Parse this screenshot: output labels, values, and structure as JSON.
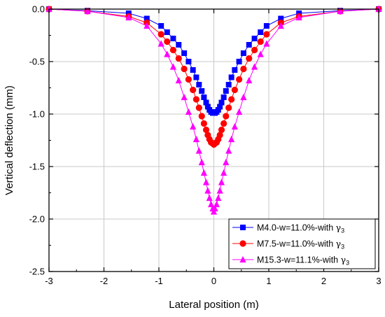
{
  "chart_data": {
    "type": "line",
    "xlabel": "Lateral position (m)",
    "ylabel": "Vertical deflection (mm)",
    "xlim": [
      -3,
      3
    ],
    "ylim": [
      -2.5,
      0.0
    ],
    "xticks": [
      -3,
      -2,
      -1,
      0,
      1,
      2,
      3
    ],
    "yticks": [
      0.0,
      -0.5,
      -1.0,
      -1.5,
      -2.0,
      -2.5
    ],
    "xtick_labels": [
      "-3",
      "-2",
      "-1",
      "0",
      "1",
      "2",
      "3"
    ],
    "ytick_labels": [
      "0.0",
      "-0.5",
      "-1.0",
      "-1.5",
      "-2.0",
      "-2.5"
    ],
    "grid": true,
    "legend_position": "bottom-right",
    "gamma_symbol": "γ",
    "gamma_subscript": "3",
    "series": [
      {
        "name": "M4.0-w=11.0%-with γ3",
        "legend_main": "M4.0-w=11.0%-with ",
        "color": "#0000ff",
        "marker": "square",
        "x": [
          -3.0,
          -2.3,
          -1.55,
          -1.22,
          -0.96,
          -0.85,
          -0.74,
          -0.64,
          -0.54,
          -0.46,
          -0.38,
          -0.32,
          -0.27,
          -0.22,
          -0.18,
          -0.14,
          -0.11,
          -0.08,
          -0.05,
          -0.02,
          0.0,
          0.02,
          0.05,
          0.08,
          0.11,
          0.14,
          0.18,
          0.22,
          0.27,
          0.32,
          0.38,
          0.46,
          0.54,
          0.64,
          0.74,
          0.85,
          0.96,
          1.22,
          1.55,
          2.3,
          3.0
        ],
        "y": [
          0.0,
          -0.015,
          -0.04,
          -0.09,
          -0.16,
          -0.22,
          -0.28,
          -0.34,
          -0.42,
          -0.5,
          -0.58,
          -0.65,
          -0.72,
          -0.78,
          -0.84,
          -0.89,
          -0.93,
          -0.96,
          -0.98,
          -0.99,
          -0.99,
          -0.99,
          -0.98,
          -0.96,
          -0.93,
          -0.89,
          -0.84,
          -0.78,
          -0.72,
          -0.65,
          -0.58,
          -0.5,
          -0.42,
          -0.34,
          -0.28,
          -0.22,
          -0.16,
          -0.09,
          -0.04,
          -0.015,
          0.0
        ]
      },
      {
        "name": "M7.5-w=11.0%-with γ3",
        "legend_main": "M7.5-w=11.0%-with ",
        "color": "#ff0000",
        "marker": "circle",
        "x": [
          -3.0,
          -2.3,
          -1.55,
          -1.22,
          -0.96,
          -0.85,
          -0.74,
          -0.64,
          -0.54,
          -0.46,
          -0.38,
          -0.32,
          -0.27,
          -0.22,
          -0.18,
          -0.14,
          -0.11,
          -0.08,
          -0.05,
          -0.02,
          0.0,
          0.02,
          0.05,
          0.08,
          0.11,
          0.14,
          0.18,
          0.22,
          0.27,
          0.32,
          0.38,
          0.46,
          0.54,
          0.64,
          0.74,
          0.85,
          0.96,
          1.22,
          1.55,
          2.3,
          3.0
        ],
        "y": [
          0.0,
          -0.02,
          -0.07,
          -0.13,
          -0.24,
          -0.31,
          -0.39,
          -0.47,
          -0.57,
          -0.67,
          -0.77,
          -0.86,
          -0.94,
          -1.02,
          -1.09,
          -1.15,
          -1.2,
          -1.24,
          -1.27,
          -1.28,
          -1.29,
          -1.28,
          -1.27,
          -1.24,
          -1.2,
          -1.15,
          -1.09,
          -1.02,
          -0.94,
          -0.86,
          -0.77,
          -0.67,
          -0.57,
          -0.47,
          -0.39,
          -0.31,
          -0.24,
          -0.13,
          -0.07,
          -0.02,
          0.0
        ]
      },
      {
        "name": "M15.3-w=11.1%-with γ3",
        "legend_main": "M15.3-w=11.1%-with ",
        "color": "#ff00ff",
        "marker": "triangle",
        "x": [
          -3.0,
          -2.3,
          -1.55,
          -1.22,
          -0.96,
          -0.85,
          -0.74,
          -0.64,
          -0.54,
          -0.46,
          -0.38,
          -0.32,
          -0.27,
          -0.22,
          -0.18,
          -0.14,
          -0.11,
          -0.08,
          -0.05,
          -0.02,
          0.0,
          0.02,
          0.05,
          0.08,
          0.11,
          0.14,
          0.18,
          0.22,
          0.27,
          0.32,
          0.38,
          0.46,
          0.54,
          0.64,
          0.74,
          0.85,
          0.96,
          1.22,
          1.55,
          2.3,
          3.0
        ],
        "y": [
          0.0,
          -0.02,
          -0.08,
          -0.16,
          -0.33,
          -0.43,
          -0.55,
          -0.68,
          -0.84,
          -0.98,
          -1.12,
          -1.24,
          -1.35,
          -1.46,
          -1.56,
          -1.65,
          -1.73,
          -1.8,
          -1.86,
          -1.9,
          -1.93,
          -1.9,
          -1.86,
          -1.8,
          -1.73,
          -1.65,
          -1.56,
          -1.46,
          -1.35,
          -1.24,
          -1.12,
          -0.98,
          -0.84,
          -0.68,
          -0.55,
          -0.43,
          -0.33,
          -0.16,
          -0.08,
          -0.02,
          0.0
        ]
      }
    ]
  }
}
